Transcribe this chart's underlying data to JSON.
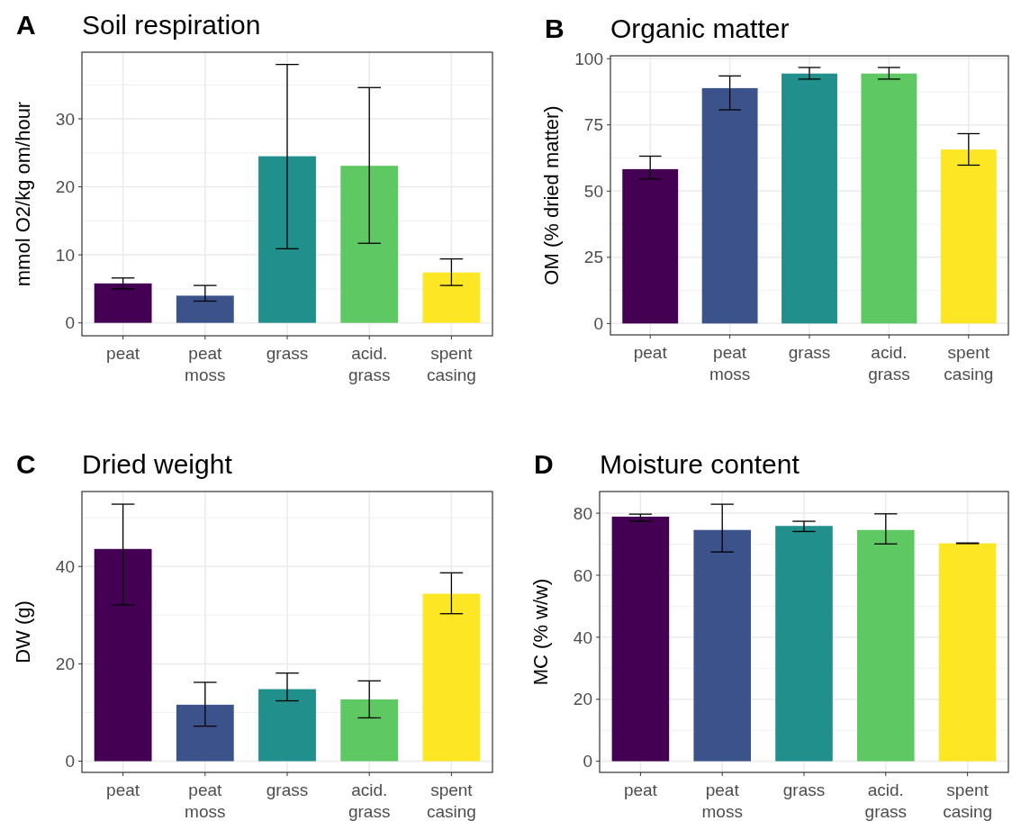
{
  "chart_data": [
    {
      "type": "bar",
      "title": "Soil respiration",
      "annotations": [
        "A"
      ],
      "ylabel": "mmol O2/kg om/hour",
      "categories": [
        "peat",
        "peat moss",
        "grass",
        "acid. grass",
        "spent casing"
      ],
      "colors": [
        "#440154",
        "#3b528b",
        "#21908c",
        "#5ec962",
        "#fde725"
      ],
      "values": [
        5.8,
        4.0,
        24.5,
        23.1,
        7.4
      ],
      "errors": [
        [
          5.0,
          6.6
        ],
        [
          3.2,
          5.5
        ],
        [
          10.9,
          38.0
        ],
        [
          11.7,
          34.6
        ],
        [
          5.5,
          9.4
        ]
      ],
      "ylim": [
        -1.9,
        39.8
      ],
      "yticks": [
        0,
        10,
        20,
        30
      ],
      "grid": true
    },
    {
      "type": "bar",
      "title": "Organic matter",
      "annotations": [
        "B"
      ],
      "ylabel": "OM (% dried matter)",
      "categories": [
        "peat",
        "peat moss",
        "grass",
        "acid. grass",
        "spent casing"
      ],
      "colors": [
        "#440154",
        "#3b528b",
        "#21908c",
        "#5ec962",
        "#fde725"
      ],
      "values": [
        58.3,
        88.9,
        94.4,
        94.4,
        65.7
      ],
      "errors": [
        [
          54.6,
          63.2
        ],
        [
          80.7,
          93.5
        ],
        [
          92.3,
          96.7
        ],
        [
          92.3,
          96.7
        ],
        [
          59.8,
          71.7
        ]
      ],
      "ylim": [
        -4.3,
        101.1
      ],
      "yticks": [
        0,
        25,
        50,
        75,
        100
      ],
      "grid": true
    },
    {
      "type": "bar",
      "title": "Dried weight",
      "annotations": [
        "C"
      ],
      "ylabel": "DW (g)",
      "categories": [
        "peat",
        "peat moss",
        "grass",
        "acid. grass",
        "spent casing"
      ],
      "colors": [
        "#440154",
        "#3b528b",
        "#21908c",
        "#5ec962",
        "#fde725"
      ],
      "values": [
        43.6,
        11.6,
        14.8,
        12.7,
        34.4
      ],
      "errors": [
        [
          32.1,
          52.8
        ],
        [
          7.2,
          16.2
        ],
        [
          12.4,
          18.1
        ],
        [
          8.9,
          16.5
        ],
        [
          30.3,
          38.7
        ]
      ],
      "ylim": [
        -2.3,
        55.4
      ],
      "yticks": [
        0,
        20,
        40
      ],
      "grid": true
    },
    {
      "type": "bar",
      "title": "Moisture content",
      "annotations": [
        "D"
      ],
      "ylabel": "MC (% w/w)",
      "categories": [
        "peat",
        "peat moss",
        "grass",
        "acid. grass",
        "spent casing"
      ],
      "colors": [
        "#440154",
        "#3b528b",
        "#21908c",
        "#5ec962",
        "#fde725"
      ],
      "values": [
        78.9,
        74.6,
        75.9,
        74.6,
        70.3
      ],
      "errors": [
        [
          77.4,
          79.7
        ],
        [
          67.5,
          82.9
        ],
        [
          74.1,
          77.4
        ],
        [
          70.1,
          79.8
        ],
        [
          70.2,
          70.4
        ]
      ],
      "ylim": [
        -3.6,
        87.0
      ],
      "yticks": [
        0,
        20,
        40,
        60,
        80
      ],
      "grid": true
    }
  ]
}
